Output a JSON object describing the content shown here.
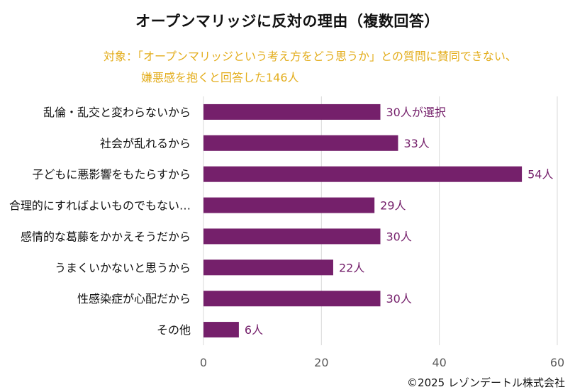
{
  "title": "オープンマリッジに反対の理由（複数回答）",
  "subtitle_lines": [
    "対象：「オープンマリッジという考え方をどう思うか」との質問に賛同できない、",
    "嫌悪感を抱くと回答した146人"
  ],
  "copyright": "©2025 レゾンデートル株式会社",
  "colors": {
    "bar": "#75206b",
    "label": "#75206b",
    "subtitle": "#e3ad1c",
    "grid": "#d9d9d9",
    "axis": "#595959"
  },
  "chart_data": {
    "type": "bar",
    "orientation": "horizontal",
    "title": "オープンマリッジに反対の理由（複数回答）",
    "categories": [
      "乱倫・乱交と変わらないから",
      "社会が乱れるから",
      "子どもに悪影響をもたらすから",
      "合理的にすればよいものでもない…",
      "感情的な葛藤をかかえそうだから",
      "うまくいかないと思うから",
      "性感染症が心配だから",
      "その他"
    ],
    "values": [
      30,
      33,
      54,
      29,
      30,
      22,
      30,
      6
    ],
    "data_labels": [
      "30人が選択",
      "33人",
      "54人",
      "29人",
      "30人",
      "22人",
      "30人",
      "6人"
    ],
    "xlim": [
      0,
      60
    ],
    "xticks": [
      "0",
      "20",
      "40",
      "60"
    ],
    "grid": true
  }
}
